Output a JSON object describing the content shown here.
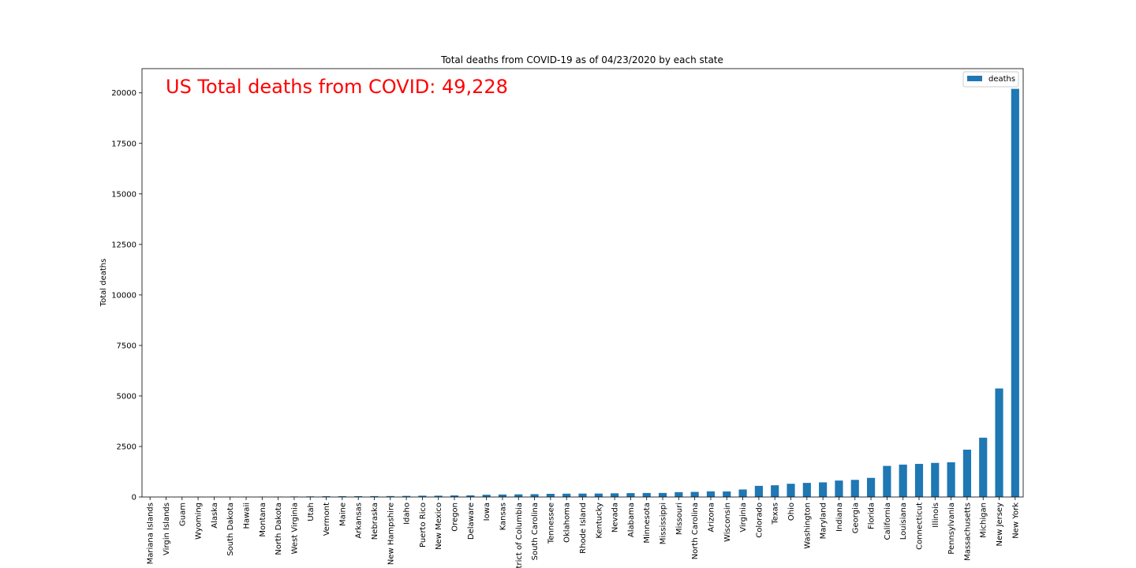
{
  "chart_data": {
    "type": "bar",
    "title": "Total deaths from COVID-19 as of 04/23/2020 by each state",
    "xlabel": "",
    "ylabel": "Total deaths",
    "ylim": [
      0,
      21200
    ],
    "yticks": [
      0,
      2500,
      5000,
      7500,
      10000,
      12500,
      15000,
      17500,
      20000
    ],
    "ytick_labels": [
      "0",
      "2500",
      "5000",
      "7500",
      "10000",
      "12500",
      "15000",
      "17500",
      "20000"
    ],
    "grid": false,
    "legend": {
      "position": "top-right",
      "entries": [
        "deaths"
      ]
    },
    "annotation": {
      "text": "US Total deaths from COVID: 49,228",
      "color": "#ff0000"
    },
    "bar_color": "#1f77b4",
    "categories": [
      "Mariana Islands",
      "Virgin Islands",
      "Guam",
      "Wyoming",
      "Alaska",
      "South Dakota",
      "Hawaii",
      "Montana",
      "North Dakota",
      "West Virginia",
      "Utah",
      "Vermont",
      "Maine",
      "Arkansas",
      "Nebraska",
      "New Hampshire",
      "Idaho",
      "Puerto Rico",
      "New Mexico",
      "Oregon",
      "Delaware",
      "Iowa",
      "Kansas",
      "District of Columbia",
      "South Carolina",
      "Tennessee",
      "Oklahoma",
      "Rhode Island",
      "Kentucky",
      "Nevada",
      "Alabama",
      "Minnesota",
      "Mississippi",
      "Missouri",
      "North Carolina",
      "Arizona",
      "Wisconsin",
      "Virginia",
      "Colorado",
      "Texas",
      "Ohio",
      "Washington",
      "Maryland",
      "Indiana",
      "Georgia",
      "Florida",
      "California",
      "Louisiana",
      "Connecticut",
      "Illinois",
      "Pennsylvania",
      "Massachusetts",
      "Michigan",
      "New Jersey",
      "New York"
    ],
    "series": [
      {
        "name": "deaths",
        "values": [
          2,
          4,
          5,
          7,
          9,
          10,
          10,
          13,
          13,
          24,
          30,
          38,
          39,
          42,
          44,
          46,
          54,
          64,
          65,
          78,
          82,
          112,
          123,
          131,
          140,
          157,
          164,
          169,
          171,
          183,
          193,
          199,
          201,
          241,
          253,
          279,
          275,
          372,
          552,
          580,
          655,
          698,
          725,
          814,
          848,
          947,
          1539,
          1603,
          1639,
          1688,
          1717,
          2342,
          2935,
          5371,
          20200
        ]
      }
    ]
  }
}
